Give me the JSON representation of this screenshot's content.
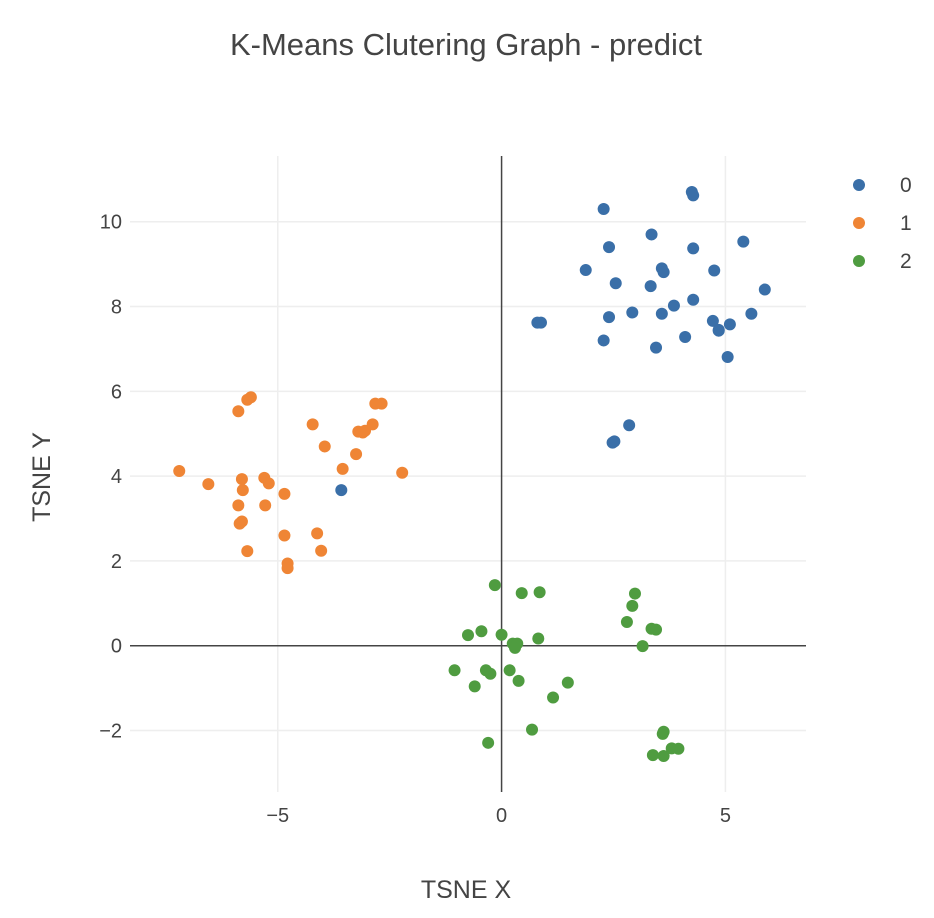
{
  "chart_data": {
    "type": "scatter",
    "title": "K-Means Clutering Graph - predict",
    "xlabel": "TSNE X",
    "ylabel": "TSNE Y",
    "xlim": [
      -8.3,
      6.8
    ],
    "ylim": [
      -3.45,
      11.55
    ],
    "xticks": [
      -5,
      0,
      5
    ],
    "xtick_labels": [
      "−5",
      "0",
      "5"
    ],
    "yticks": [
      -2,
      0,
      2,
      4,
      6,
      8,
      10
    ],
    "ytick_labels": [
      "−2",
      "0",
      "2",
      "4",
      "6",
      "8",
      "10"
    ],
    "grid": true,
    "zero_lines": true,
    "legend_position": "top-right",
    "series": [
      {
        "name": "0",
        "color": "#3a6fa8",
        "x": [
          4.25,
          4.28,
          2.28,
          3.35,
          2.4,
          4.28,
          5.4,
          1.88,
          3.58,
          3.62,
          4.75,
          2.55,
          3.33,
          5.88,
          4.28,
          3.85,
          4.85,
          5.58,
          2.92,
          3.58,
          2.4,
          4.72,
          0.8,
          0.88,
          5.1,
          4.85,
          4.1,
          2.28,
          3.45,
          5.05,
          2.85,
          2.52,
          2.48,
          -3.58
        ],
        "y": [
          10.7,
          10.62,
          10.3,
          9.7,
          9.4,
          9.37,
          9.53,
          8.86,
          8.9,
          8.81,
          8.85,
          8.55,
          8.48,
          8.4,
          8.16,
          8.02,
          7.45,
          7.83,
          7.86,
          7.83,
          7.75,
          7.66,
          7.62,
          7.62,
          7.58,
          7.43,
          7.28,
          7.2,
          7.03,
          6.81,
          5.2,
          4.82,
          4.79,
          3.67
        ]
      },
      {
        "name": "1",
        "color": "#ef8535",
        "x": [
          -5.6,
          -5.68,
          -5.88,
          -2.68,
          -2.82,
          -4.22,
          -2.88,
          -3.2,
          -3.1,
          -3.05,
          -3.95,
          -3.25,
          -3.55,
          -7.2,
          -2.22,
          -5.8,
          -5.3,
          -5.2,
          -6.55,
          -5.78,
          -4.85,
          -5.88,
          -5.28,
          -5.8,
          -5.85,
          -4.85,
          -4.12,
          -4.03,
          -5.68,
          -4.78,
          -4.78
        ],
        "y": [
          5.86,
          5.8,
          5.53,
          5.71,
          5.71,
          5.22,
          5.22,
          5.05,
          5.03,
          5.07,
          4.7,
          4.52,
          4.17,
          4.12,
          4.08,
          3.93,
          3.96,
          3.83,
          3.81,
          3.67,
          3.58,
          3.31,
          3.31,
          2.93,
          2.88,
          2.6,
          2.65,
          2.24,
          2.23,
          1.94,
          1.83
        ]
      },
      {
        "name": "2",
        "color": "#4f9c40",
        "x": [
          -0.15,
          0.45,
          0.85,
          2.98,
          2.92,
          2.8,
          3.35,
          3.45,
          -0.75,
          -0.45,
          0.0,
          0.82,
          0.25,
          0.35,
          0.3,
          3.15,
          -1.05,
          -0.35,
          -0.25,
          0.18,
          0.38,
          -0.6,
          1.48,
          1.15,
          0.68,
          3.62,
          3.6,
          -0.3,
          3.95,
          3.8,
          3.38,
          3.62
        ],
        "y": [
          1.43,
          1.24,
          1.26,
          1.23,
          0.94,
          0.56,
          0.4,
          0.38,
          0.25,
          0.34,
          0.26,
          0.17,
          0.05,
          0.05,
          -0.05,
          -0.01,
          -0.58,
          -0.58,
          -0.66,
          -0.58,
          -0.83,
          -0.96,
          -0.87,
          -1.22,
          -1.98,
          -2.03,
          -2.08,
          -2.29,
          -2.43,
          -2.42,
          -2.58,
          -2.6
        ]
      }
    ]
  }
}
